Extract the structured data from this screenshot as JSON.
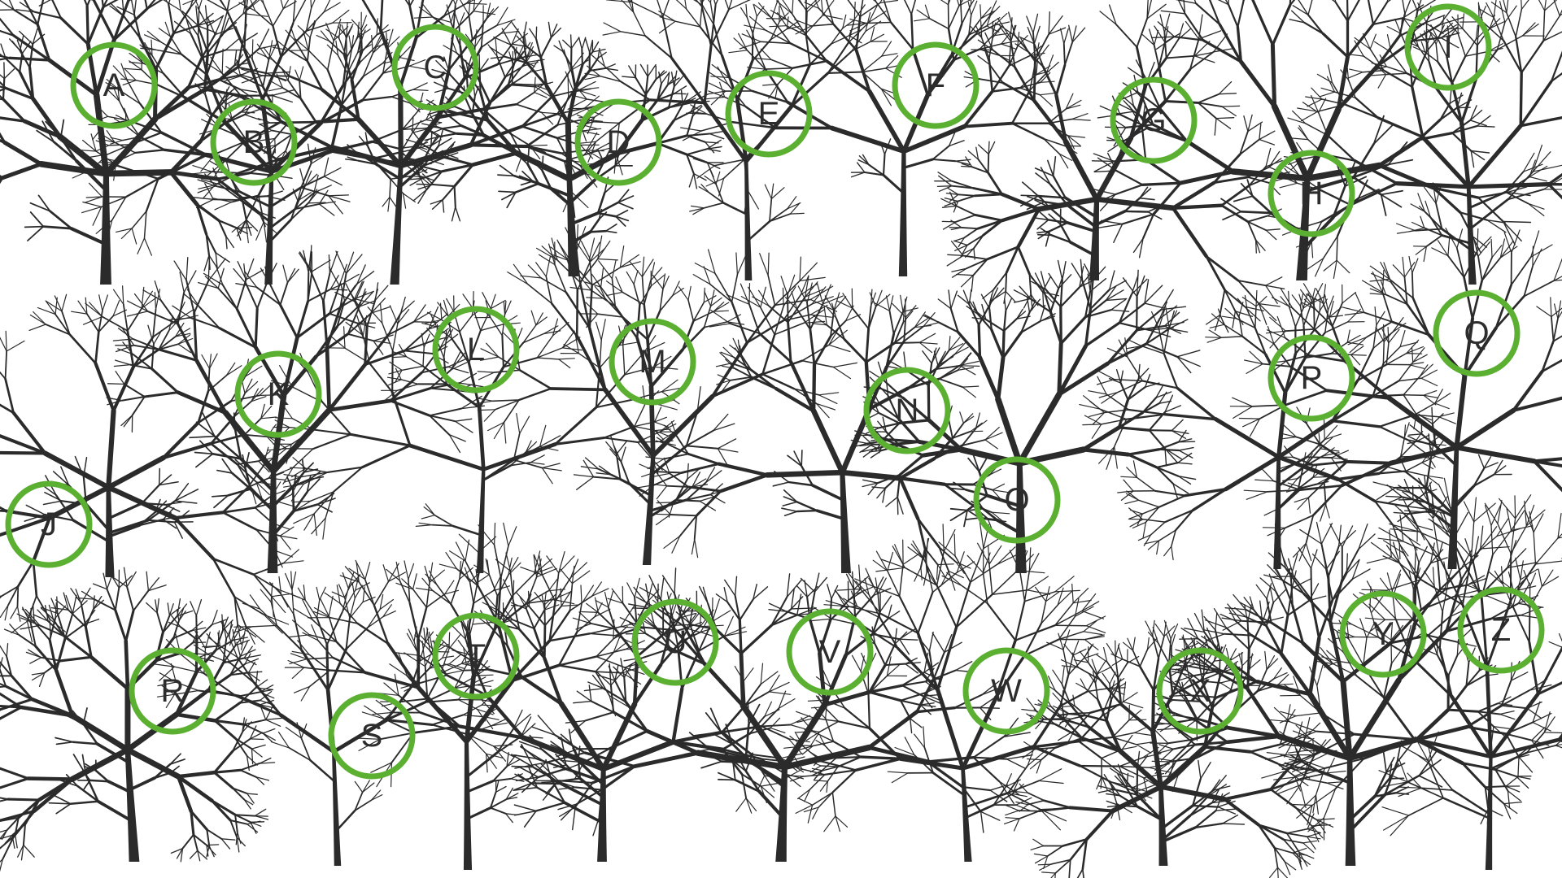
{
  "colors": {
    "background": "#ffffff",
    "tree": "#2b2b2b",
    "circle": "#5bb031"
  },
  "trees": [
    {
      "letter": "A"
    },
    {
      "letter": "B"
    },
    {
      "letter": "C"
    },
    {
      "letter": "D"
    },
    {
      "letter": "E"
    },
    {
      "letter": "F"
    },
    {
      "letter": "G"
    },
    {
      "letter": "H"
    },
    {
      "letter": "I"
    },
    {
      "letter": "J"
    },
    {
      "letter": "K"
    },
    {
      "letter": "L"
    },
    {
      "letter": "M"
    },
    {
      "letter": "N"
    },
    {
      "letter": "O"
    },
    {
      "letter": "P"
    },
    {
      "letter": "Q"
    },
    {
      "letter": "R"
    },
    {
      "letter": "S"
    },
    {
      "letter": "T"
    },
    {
      "letter": "U"
    },
    {
      "letter": "V"
    },
    {
      "letter": "W"
    },
    {
      "letter": "X"
    },
    {
      "letter": "Y"
    },
    {
      "letter": "Z"
    }
  ]
}
